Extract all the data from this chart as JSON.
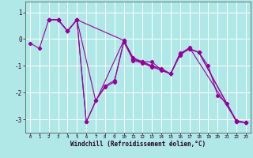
{
  "bg_color": "#b0e8e8",
  "line_color": "#990099",
  "marker_color": "#990099",
  "grid_color": "#ffffff",
  "xlabel": "Windchill (Refroidissement éolien,°C)",
  "xlim": [
    -0.5,
    23.5
  ],
  "ylim": [
    -3.5,
    1.4
  ],
  "yticks": [
    -3,
    -2,
    -1,
    0,
    1
  ],
  "xticks": [
    0,
    1,
    2,
    3,
    4,
    5,
    6,
    7,
    8,
    9,
    10,
    11,
    12,
    13,
    14,
    15,
    16,
    17,
    18,
    19,
    20,
    21,
    22,
    23
  ],
  "series1_x": [
    0,
    1,
    2,
    3,
    4,
    5,
    6,
    7,
    8,
    9,
    10,
    11,
    12,
    13,
    14,
    15,
    16,
    17,
    18,
    19,
    20,
    21,
    22,
    23
  ],
  "series1_y": [
    -0.15,
    -0.35,
    0.72,
    0.72,
    0.3,
    0.72,
    -3.1,
    -2.3,
    -1.75,
    -1.55,
    -0.1,
    -0.75,
    -0.85,
    -1.0,
    -1.1,
    -1.3,
    -0.55,
    -0.38,
    -0.5,
    -1.0,
    -2.1,
    -2.4,
    -3.1,
    -3.12
  ],
  "series2_x": [
    2,
    3,
    4,
    5,
    6,
    10,
    11,
    12,
    13,
    14,
    15,
    16,
    17,
    18,
    22,
    23
  ],
  "series2_y": [
    0.72,
    0.72,
    0.3,
    0.72,
    -3.1,
    -0.05,
    -0.7,
    -0.85,
    -0.85,
    -1.15,
    -1.3,
    -0.52,
    -0.38,
    -0.5,
    -3.08,
    -3.12
  ],
  "series3_x": [
    2,
    3,
    4,
    5,
    10,
    11,
    12,
    13,
    14,
    15,
    16,
    17,
    22,
    23
  ],
  "series3_y": [
    0.72,
    0.72,
    0.3,
    0.72,
    -0.05,
    -0.75,
    -0.88,
    -1.0,
    -1.18,
    -1.3,
    -0.55,
    -0.32,
    -3.05,
    -3.12
  ],
  "series4_x": [
    2,
    3,
    4,
    5,
    7,
    8,
    9,
    10,
    11,
    12,
    13,
    14,
    15,
    16,
    17,
    18,
    22,
    23
  ],
  "series4_y": [
    0.72,
    0.72,
    0.3,
    0.72,
    -2.3,
    -1.8,
    -1.6,
    -0.1,
    -0.8,
    -0.9,
    -1.05,
    -1.15,
    -1.3,
    -0.6,
    -0.35,
    -0.5,
    -3.05,
    -3.12
  ]
}
